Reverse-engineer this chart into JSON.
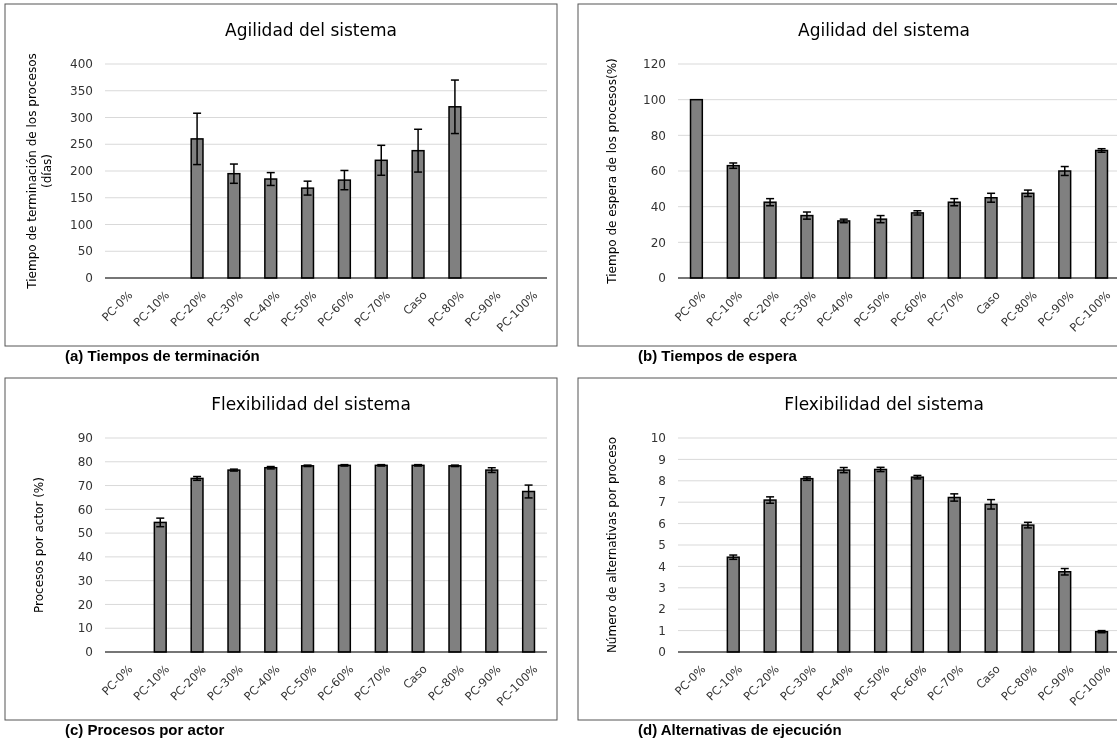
{
  "chart_data": [
    {
      "type": "bar",
      "title": "Agilidad del sistema",
      "ylabel": "Tiempo de terminación de los procesos (días)",
      "annotations": [
        "(a) Tiempos de terminación"
      ],
      "categories": [
        "PC-0%",
        "PC-10%",
        "PC-20%",
        "PC-30%",
        "PC-40%",
        "PC-50%",
        "PC-60%",
        "PC-70%",
        "Caso",
        "PC-80%",
        "PC-90%",
        "PC-100%"
      ],
      "values": [
        null,
        null,
        260,
        195,
        185,
        168,
        183,
        220,
        238,
        320,
        null,
        null
      ],
      "errors": [
        null,
        null,
        48,
        18,
        12,
        13,
        18,
        28,
        40,
        50,
        null,
        null
      ],
      "color": "#808080",
      "ylim": [
        0,
        400
      ],
      "yticks": [
        0,
        50,
        100,
        150,
        200,
        250,
        300,
        350,
        400
      ],
      "grid": "y"
    },
    {
      "type": "bar",
      "title": "Agilidad del sistema",
      "ylabel": "Tiempo de espera de los procesos(%)",
      "annotations": [
        "(b) Tiempos de espera"
      ],
      "categories": [
        "PC-0%",
        "PC-10%",
        "PC-20%",
        "PC-30%",
        "PC-40%",
        "PC-50%",
        "PC-60%",
        "PC-70%",
        "Caso",
        "PC-80%",
        "PC-90%",
        "PC-100%"
      ],
      "values": [
        100,
        63,
        42.5,
        35,
        32,
        33,
        36.5,
        42.5,
        45,
        47.5,
        60,
        71.5
      ],
      "errors": [
        null,
        1.5,
        2,
        2,
        1,
        2,
        1.2,
        2,
        2.5,
        1.8,
        2.5,
        1
      ],
      "color": "#808080",
      "ylim": [
        0,
        120
      ],
      "yticks": [
        0,
        20,
        40,
        60,
        80,
        100,
        120
      ],
      "grid": "y"
    },
    {
      "type": "bar",
      "title": "Flexibilidad del sistema",
      "ylabel": "Procesos por actor (%)",
      "annotations": [
        "(c) Procesos por actor"
      ],
      "categories": [
        "PC-0%",
        "PC-10%",
        "PC-20%",
        "PC-30%",
        "PC-40%",
        "PC-50%",
        "PC-60%",
        "PC-70%",
        "Caso",
        "PC-80%",
        "PC-90%",
        "PC-100%"
      ],
      "values": [
        null,
        54.5,
        73,
        76.5,
        77.5,
        78.3,
        78.5,
        78.5,
        78.5,
        78.3,
        76.5,
        67.5
      ],
      "errors": [
        null,
        1.8,
        0.8,
        0.4,
        0.5,
        0.3,
        0.3,
        0.3,
        0.3,
        0.3,
        1,
        2.7
      ],
      "color": "#808080",
      "ylim": [
        0,
        90
      ],
      "yticks": [
        0,
        10,
        20,
        30,
        40,
        50,
        60,
        70,
        80,
        90
      ],
      "grid": "y"
    },
    {
      "type": "bar",
      "title": "Flexibilidad del sistema",
      "ylabel": "Número de alternativas por proceso",
      "annotations": [
        "(d) Alternativas de ejecución"
      ],
      "categories": [
        "PC-0%",
        "PC-10%",
        "PC-20%",
        "PC-30%",
        "PC-40%",
        "PC-50%",
        "PC-60%",
        "PC-70%",
        "Caso",
        "PC-80%",
        "PC-90%",
        "PC-100%"
      ],
      "values": [
        null,
        4.43,
        7.1,
        8.1,
        8.5,
        8.53,
        8.17,
        7.22,
        6.9,
        5.93,
        3.75,
        0.95
      ],
      "errors": [
        null,
        0.1,
        0.15,
        0.08,
        0.12,
        0.1,
        0.08,
        0.17,
        0.22,
        0.13,
        0.15,
        0.05
      ],
      "color": "#808080",
      "ylim": [
        0,
        10
      ],
      "yticks": [
        0,
        1,
        2,
        3,
        4,
        5,
        6,
        7,
        8,
        9,
        10
      ],
      "grid": "y"
    }
  ]
}
